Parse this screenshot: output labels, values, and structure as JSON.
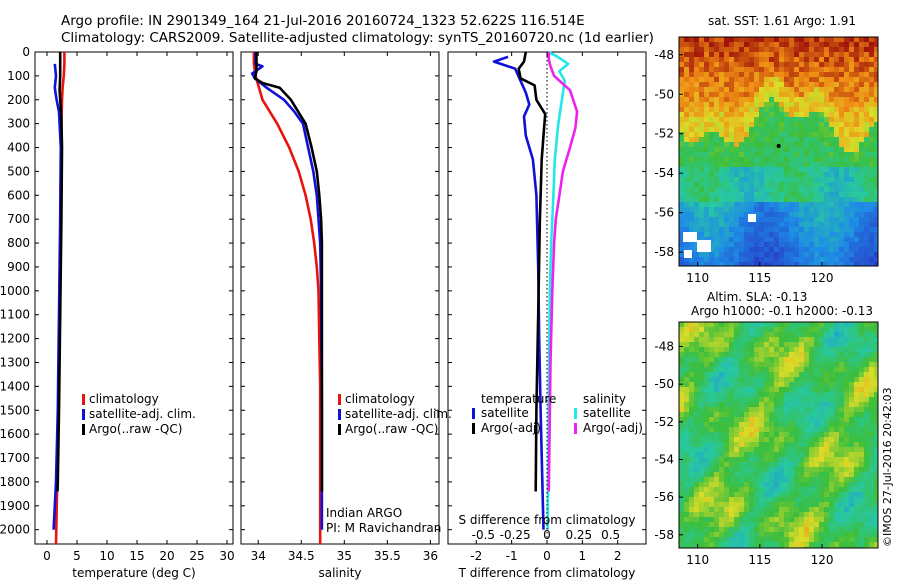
{
  "header": {
    "line1": "Argo profile: IN 2901349_164 21-Jul-2016 20160724_1323 52.622S 116.514E",
    "line2": "Climatology: CARS2009. Satellite-adjusted climatology: synTS_20160720.nc (1d earlier)"
  },
  "colors": {
    "climatology": "#e8130d",
    "satellite": "#1010d8",
    "argo": "#000000",
    "sal_satellite": "#22e8e8",
    "sal_argo": "#ee22ee"
  },
  "chart_data": [
    {
      "type": "line",
      "name": "temperature-profile",
      "xlabel": "temperature (deg C)",
      "ylabel": "",
      "xlim": [
        -2,
        31
      ],
      "ylim": [
        2060,
        0
      ],
      "xticks": [
        0,
        5,
        10,
        15,
        20,
        25,
        30
      ],
      "yticks": [
        0,
        100,
        200,
        300,
        400,
        500,
        600,
        700,
        800,
        900,
        1000,
        1100,
        1200,
        1300,
        1400,
        1500,
        1600,
        1700,
        1800,
        1900,
        2000
      ],
      "legend": [
        "climatology",
        "satellite-adj. clim.",
        "Argo(..raw -QC)"
      ],
      "series": [
        {
          "name": "climatology",
          "color_key": "climatology",
          "points": [
            [
              2.9,
              0
            ],
            [
              2.9,
              50
            ],
            [
              2.8,
              100
            ],
            [
              2.6,
              150
            ],
            [
              2.5,
              200
            ],
            [
              2.4,
              300
            ],
            [
              2.3,
              500
            ],
            [
              2.2,
              800
            ],
            [
              2.05,
              1100
            ],
            [
              1.9,
              1500
            ],
            [
              1.7,
              1800
            ],
            [
              1.5,
              2060
            ]
          ]
        },
        {
          "name": "satellite-adj. clim.",
          "color_key": "satellite",
          "points": [
            [
              1.3,
              50
            ],
            [
              1.5,
              100
            ],
            [
              1.3,
              150
            ],
            [
              1.6,
              200
            ],
            [
              2.0,
              250
            ],
            [
              2.3,
              400
            ],
            [
              2.2,
              700
            ],
            [
              2.0,
              1100
            ],
            [
              1.8,
              1500
            ],
            [
              1.5,
              1800
            ],
            [
              1.1,
              2000
            ]
          ]
        },
        {
          "name": "Argo(..raw -QC)",
          "color_key": "argo",
          "points": [
            [
              2.2,
              0
            ],
            [
              2.2,
              100
            ],
            [
              2.1,
              160
            ],
            [
              2.2,
              200
            ],
            [
              2.4,
              280
            ],
            [
              2.5,
              400
            ],
            [
              2.4,
              700
            ],
            [
              2.2,
              1100
            ],
            [
              2.0,
              1500
            ],
            [
              1.8,
              1800
            ],
            [
              1.75,
              1840
            ]
          ]
        }
      ]
    },
    {
      "type": "line",
      "name": "salinity-profile",
      "xlabel": "salinity",
      "ylabel": "",
      "xlim": [
        33.8,
        36.1
      ],
      "ylim": [
        2060,
        0
      ],
      "xticks": [
        34,
        34.5,
        35,
        35.5,
        36
      ],
      "xticklabels": [
        "34",
        "34.5",
        "35",
        "35.5",
        "36"
      ],
      "legend": [
        "climatology",
        "satellite-adj. clim.",
        "Argo(..raw -QC)"
      ],
      "annotation": [
        "Indian ARGO",
        "PI: M Ravichandran"
      ],
      "series": [
        {
          "name": "climatology",
          "color_key": "climatology",
          "points": [
            [
              33.95,
              0
            ],
            [
              33.95,
              50
            ],
            [
              33.97,
              100
            ],
            [
              34.05,
              200
            ],
            [
              34.22,
              300
            ],
            [
              34.36,
              400
            ],
            [
              34.47,
              500
            ],
            [
              34.55,
              600
            ],
            [
              34.61,
              700
            ],
            [
              34.65,
              800
            ],
            [
              34.68,
              900
            ],
            [
              34.7,
              1000
            ],
            [
              34.71,
              1200
            ],
            [
              34.72,
              1400
            ],
            [
              34.72,
              1800
            ],
            [
              34.72,
              2060
            ]
          ]
        },
        {
          "name": "satellite-adj. clim.",
          "color_key": "satellite",
          "points": [
            [
              33.97,
              0
            ],
            [
              33.97,
              50
            ],
            [
              34.05,
              60
            ],
            [
              33.93,
              90
            ],
            [
              33.96,
              110
            ],
            [
              34.1,
              150
            ],
            [
              34.3,
              200
            ],
            [
              34.42,
              250
            ],
            [
              34.52,
              300
            ],
            [
              34.58,
              400
            ],
            [
              34.64,
              500
            ],
            [
              34.68,
              600
            ],
            [
              34.7,
              700
            ],
            [
              34.72,
              800
            ],
            [
              34.73,
              1000
            ],
            [
              34.74,
              1500
            ],
            [
              34.74,
              2000
            ]
          ]
        },
        {
          "name": "Argo(..raw -QC)",
          "color_key": "argo",
          "points": [
            [
              33.98,
              0
            ],
            [
              33.98,
              80
            ],
            [
              33.96,
              110
            ],
            [
              34.05,
              130
            ],
            [
              34.25,
              150
            ],
            [
              34.38,
              200
            ],
            [
              34.55,
              300
            ],
            [
              34.62,
              400
            ],
            [
              34.68,
              500
            ],
            [
              34.71,
              600
            ],
            [
              34.73,
              700
            ],
            [
              34.74,
              800
            ],
            [
              34.74,
              1000
            ],
            [
              34.74,
              1840
            ]
          ]
        }
      ]
    },
    {
      "type": "line",
      "name": "difference-from-climatology",
      "xlabel": "T difference from climatology",
      "xlim": [
        -2.8,
        2.8
      ],
      "ylim": [
        2060,
        0
      ],
      "xticks": [
        -2,
        -1,
        0,
        1,
        2
      ],
      "xticklabels": [
        "-2",
        "-1",
        "0",
        "1",
        "2"
      ],
      "secondary_axis": {
        "label": "S difference from climatology",
        "ticks": [
          -0.5,
          -0.25,
          0,
          0.25,
          0.5
        ],
        "ticklabels": [
          "-0.5",
          "-0.25",
          "0",
          "0.25",
          "0.5"
        ],
        "scale_to_T": 3.6
      },
      "legend": {
        "temperature_title": "temperature",
        "salinity_title": "salinity",
        "entries": [
          "satellite",
          "Argo(-adj)",
          "satellite",
          "Argo(-adj)"
        ]
      },
      "series": [
        {
          "name": "temperature satellite",
          "color_key": "satellite",
          "points": [
            [
              -1.1,
              20
            ],
            [
              -1.5,
              40
            ],
            [
              -0.9,
              70
            ],
            [
              -0.75,
              120
            ],
            [
              -0.6,
              170
            ],
            [
              -0.5,
              220
            ],
            [
              -0.65,
              270
            ],
            [
              -0.6,
              350
            ],
            [
              -0.4,
              450
            ],
            [
              -0.3,
              600
            ],
            [
              -0.25,
              900
            ],
            [
              -0.22,
              1200
            ],
            [
              -0.18,
              1500
            ],
            [
              -0.1,
              2000
            ]
          ]
        },
        {
          "name": "temperature Argo(-adj)",
          "color_key": "argo",
          "points": [
            [
              -0.6,
              0
            ],
            [
              -0.65,
              40
            ],
            [
              -0.8,
              70
            ],
            [
              -0.75,
              110
            ],
            [
              -0.35,
              140
            ],
            [
              -0.3,
              200
            ],
            [
              -0.05,
              260
            ],
            [
              -0.1,
              350
            ],
            [
              -0.15,
              450
            ],
            [
              -0.2,
              700
            ],
            [
              -0.25,
              1100
            ],
            [
              -0.3,
              1500
            ],
            [
              -0.32,
              1840
            ]
          ]
        },
        {
          "name": "salinity satellite",
          "color_key": "sal_satellite",
          "points": [
            [
              0.05,
              0
            ],
            [
              0.3,
              20
            ],
            [
              0.6,
              50
            ],
            [
              0.35,
              80
            ],
            [
              0.5,
              120
            ],
            [
              0.42,
              200
            ],
            [
              0.32,
              300
            ],
            [
              0.22,
              450
            ],
            [
              0.18,
              600
            ],
            [
              0.12,
              800
            ],
            [
              0.08,
              1000
            ],
            [
              0.05,
              1400
            ],
            [
              0.02,
              2000
            ]
          ]
        },
        {
          "name": "salinity Argo(-adj)",
          "color_key": "sal_argo",
          "points": [
            [
              0.05,
              0
            ],
            [
              0.05,
              30
            ],
            [
              0.1,
              60
            ],
            [
              0.2,
              100
            ],
            [
              0.65,
              160
            ],
            [
              0.85,
              250
            ],
            [
              0.8,
              320
            ],
            [
              0.65,
              400
            ],
            [
              0.45,
              500
            ],
            [
              0.35,
              600
            ],
            [
              0.25,
              700
            ],
            [
              0.2,
              800
            ],
            [
              0.15,
              1000
            ],
            [
              0.1,
              1300
            ],
            [
              0.05,
              1840
            ]
          ]
        }
      ]
    },
    {
      "type": "heatmap",
      "name": "sst-map",
      "title": "sat. SST: 1.61  Argo: 1.91",
      "xlim": [
        108.5,
        124.5
      ],
      "ylim": [
        -58.7,
        -47.1
      ],
      "xticks": [
        110,
        115,
        120
      ],
      "yticks": [
        -48,
        -50,
        -52,
        -54,
        -56,
        -58
      ],
      "profile_location": [
        116.514,
        -52.622
      ]
    },
    {
      "type": "heatmap",
      "name": "sla-map",
      "title_line1": "Altim. SLA: -0.13",
      "title_line2": "Argo h1000: -0.1  h2000: -0.13",
      "xlim": [
        108.5,
        124.5
      ],
      "ylim": [
        -58.7,
        -46.7
      ],
      "xticks": [
        110,
        115,
        120
      ],
      "yticks": [
        -48,
        -50,
        -52,
        -54,
        -56,
        -58
      ],
      "credit": "©IMOS 27-Jul-2016 20:42:03"
    }
  ]
}
